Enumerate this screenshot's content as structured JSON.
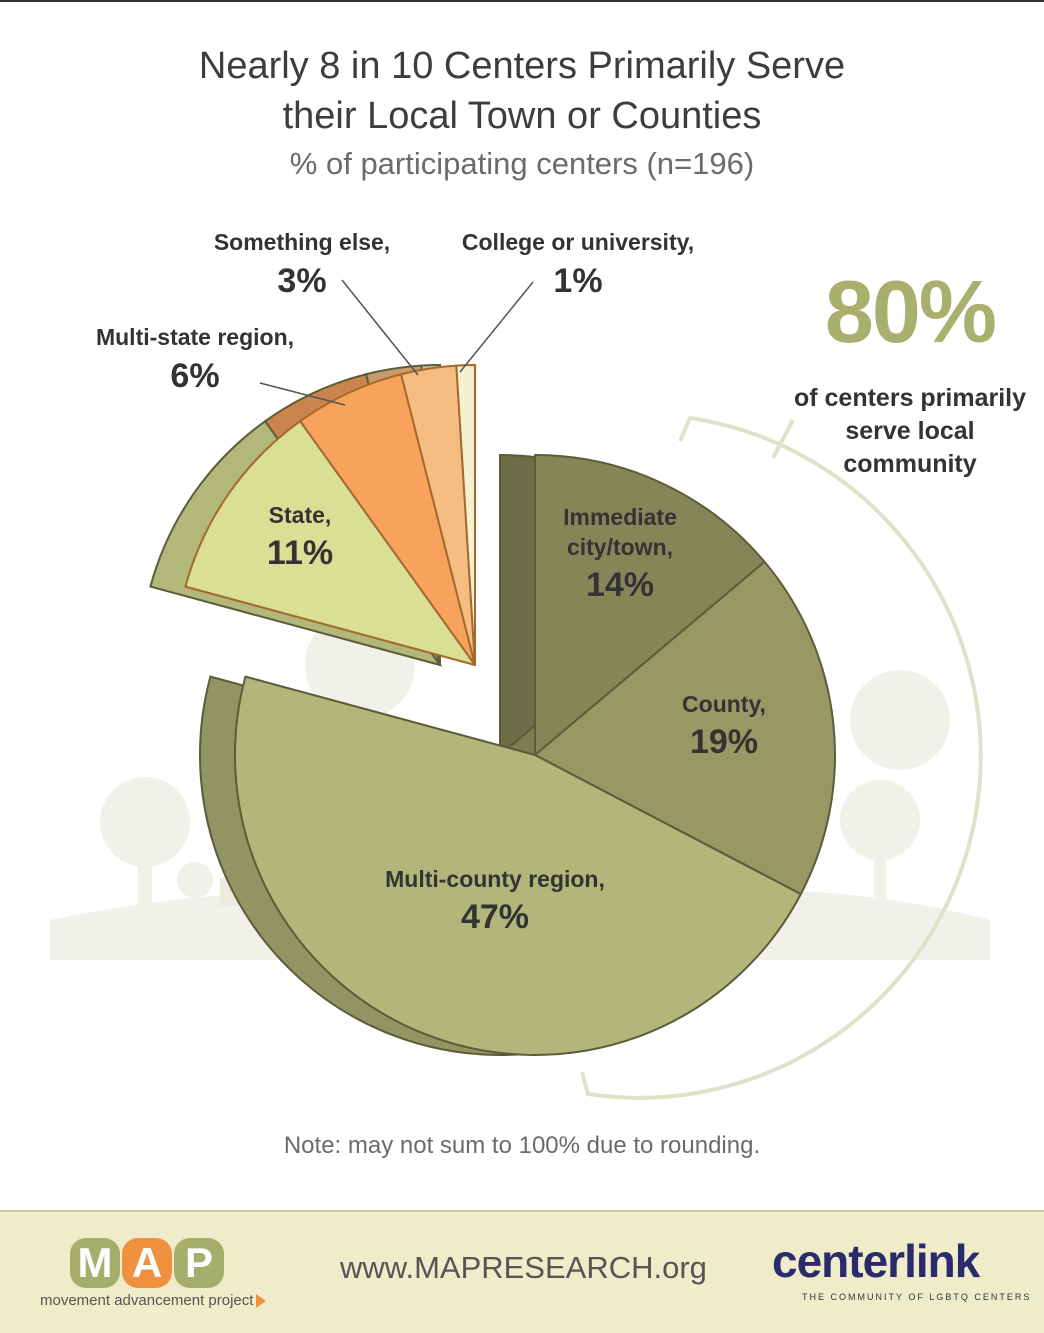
{
  "title_line1": "Nearly 8 in 10 Centers Primarily Serve",
  "title_line2": "their Local Town or Counties",
  "subtitle": "% of participating centers (n=196)",
  "callout": {
    "value": "80%",
    "text_line1": "of centers primarily",
    "text_line2": "serve local",
    "text_line3": "community"
  },
  "note": "Note: may not sum to 100% due to rounding.",
  "footer": {
    "map_letters": [
      "M",
      "A",
      "P"
    ],
    "map_tagline": "movement advancement project",
    "url": "www.MAPRESEARCH.org",
    "centerlink_name": "centerlink",
    "centerlink_tagline": "THE COMMUNITY OF LGBTQ CENTERS"
  },
  "colors": {
    "accent_olive": "#a9b06e",
    "map_green": "#a5ae6a",
    "map_orange": "#f0913f",
    "centerlink_navy": "#2b2a6d",
    "footer_bg": "#efecca"
  },
  "chart_data": {
    "type": "pie",
    "title": "Nearly 8 in 10 Centers Primarily Serve their Local Town or Counties",
    "subtitle": "% of participating centers (n=196)",
    "unit": "%",
    "slices": [
      {
        "label": "Immediate city/town,",
        "value": 14,
        "display": "14%",
        "color": "#858658"
      },
      {
        "label": "County,",
        "value": 19,
        "display": "19%",
        "color": "#979864"
      },
      {
        "label": "Multi-county region,",
        "value": 47,
        "display": "47%",
        "color": "#b1b67a"
      },
      {
        "label": "State,",
        "value": 11,
        "display": "11%",
        "color": "#d9df95"
      },
      {
        "label": "Multi-state region,",
        "value": 6,
        "display": "6%",
        "color": "#f7a25d"
      },
      {
        "label": "Something else,",
        "value": 3,
        "display": "3%",
        "color": "#f5bd81"
      },
      {
        "label": "College or university,",
        "value": 1,
        "display": "1%",
        "color": "#f4f1d2"
      }
    ],
    "group_annotation": {
      "value": "80%",
      "members": [
        "Immediate city/town,",
        "County,",
        "Multi-county region,"
      ]
    }
  }
}
